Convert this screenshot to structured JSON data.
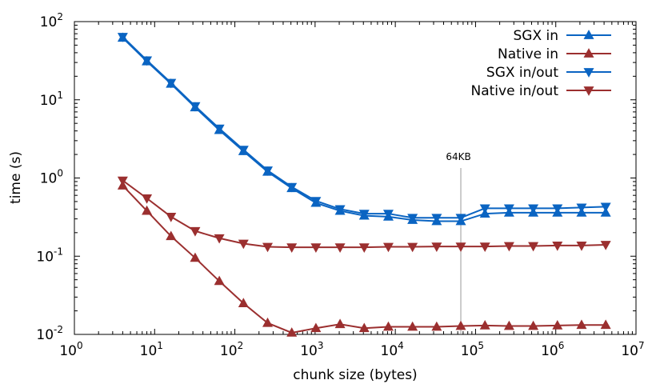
{
  "chart_data": {
    "type": "line",
    "title": "",
    "xlabel": "chunk size (bytes)",
    "ylabel": "time (s)",
    "xscale": "log",
    "yscale": "log",
    "xlim": [
      1,
      10000000
    ],
    "ylim": [
      0.01,
      100
    ],
    "x_ticks": [
      {
        "value": 1,
        "base": "10",
        "exp": "0"
      },
      {
        "value": 10,
        "base": "10",
        "exp": "1"
      },
      {
        "value": 100,
        "base": "10",
        "exp": "2"
      },
      {
        "value": 1000,
        "base": "10",
        "exp": "3"
      },
      {
        "value": 10000,
        "base": "10",
        "exp": "4"
      },
      {
        "value": 100000,
        "base": "10",
        "exp": "5"
      },
      {
        "value": 1000000,
        "base": "10",
        "exp": "6"
      },
      {
        "value": 10000000,
        "base": "10",
        "exp": "7"
      }
    ],
    "y_ticks": [
      {
        "value": 0.01,
        "base": "10",
        "exp": "-2"
      },
      {
        "value": 0.1,
        "base": "10",
        "exp": "-1"
      },
      {
        "value": 1,
        "base": "10",
        "exp": "0"
      },
      {
        "value": 10,
        "base": "10",
        "exp": "1"
      },
      {
        "value": 100,
        "base": "10",
        "exp": "2"
      }
    ],
    "grid": false,
    "legend": "top-right",
    "annotation": {
      "label": "64KB",
      "x": 65536
    },
    "x": [
      4,
      8,
      16,
      32,
      64,
      128,
      256,
      512,
      1024,
      2048,
      4096,
      8192,
      16384,
      32768,
      65536,
      131072,
      262144,
      524288,
      1048576,
      2097152,
      4194304
    ],
    "series": [
      {
        "name": "SGX in",
        "marker": "triangle-up",
        "color": "#0a64c2",
        "values": [
          62,
          31,
          16,
          8,
          4.1,
          2.2,
          1.2,
          0.74,
          0.48,
          0.38,
          0.33,
          0.32,
          0.29,
          0.28,
          0.28,
          0.35,
          0.36,
          0.36,
          0.36,
          0.36,
          0.36
        ]
      },
      {
        "name": "Native in",
        "marker": "triangle-up",
        "color": "#9b2f2f",
        "values": [
          0.8,
          0.38,
          0.18,
          0.095,
          0.048,
          0.025,
          0.014,
          0.0105,
          0.012,
          0.0135,
          0.012,
          0.0125,
          0.0125,
          0.0125,
          0.0128,
          0.013,
          0.0128,
          0.0128,
          0.013,
          0.0132,
          0.0132
        ]
      },
      {
        "name": "SGX in/out",
        "marker": "triangle-down",
        "color": "#0a64c2",
        "values": [
          64,
          32,
          16.5,
          8.3,
          4.3,
          2.3,
          1.25,
          0.77,
          0.51,
          0.4,
          0.35,
          0.35,
          0.31,
          0.31,
          0.31,
          0.41,
          0.41,
          0.41,
          0.41,
          0.42,
          0.43
        ]
      },
      {
        "name": "Native in/out",
        "marker": "triangle-down",
        "color": "#9b2f2f",
        "values": [
          0.93,
          0.55,
          0.32,
          0.21,
          0.17,
          0.145,
          0.132,
          0.13,
          0.13,
          0.13,
          0.13,
          0.132,
          0.132,
          0.133,
          0.133,
          0.133,
          0.135,
          0.135,
          0.137,
          0.137,
          0.14
        ]
      }
    ]
  }
}
